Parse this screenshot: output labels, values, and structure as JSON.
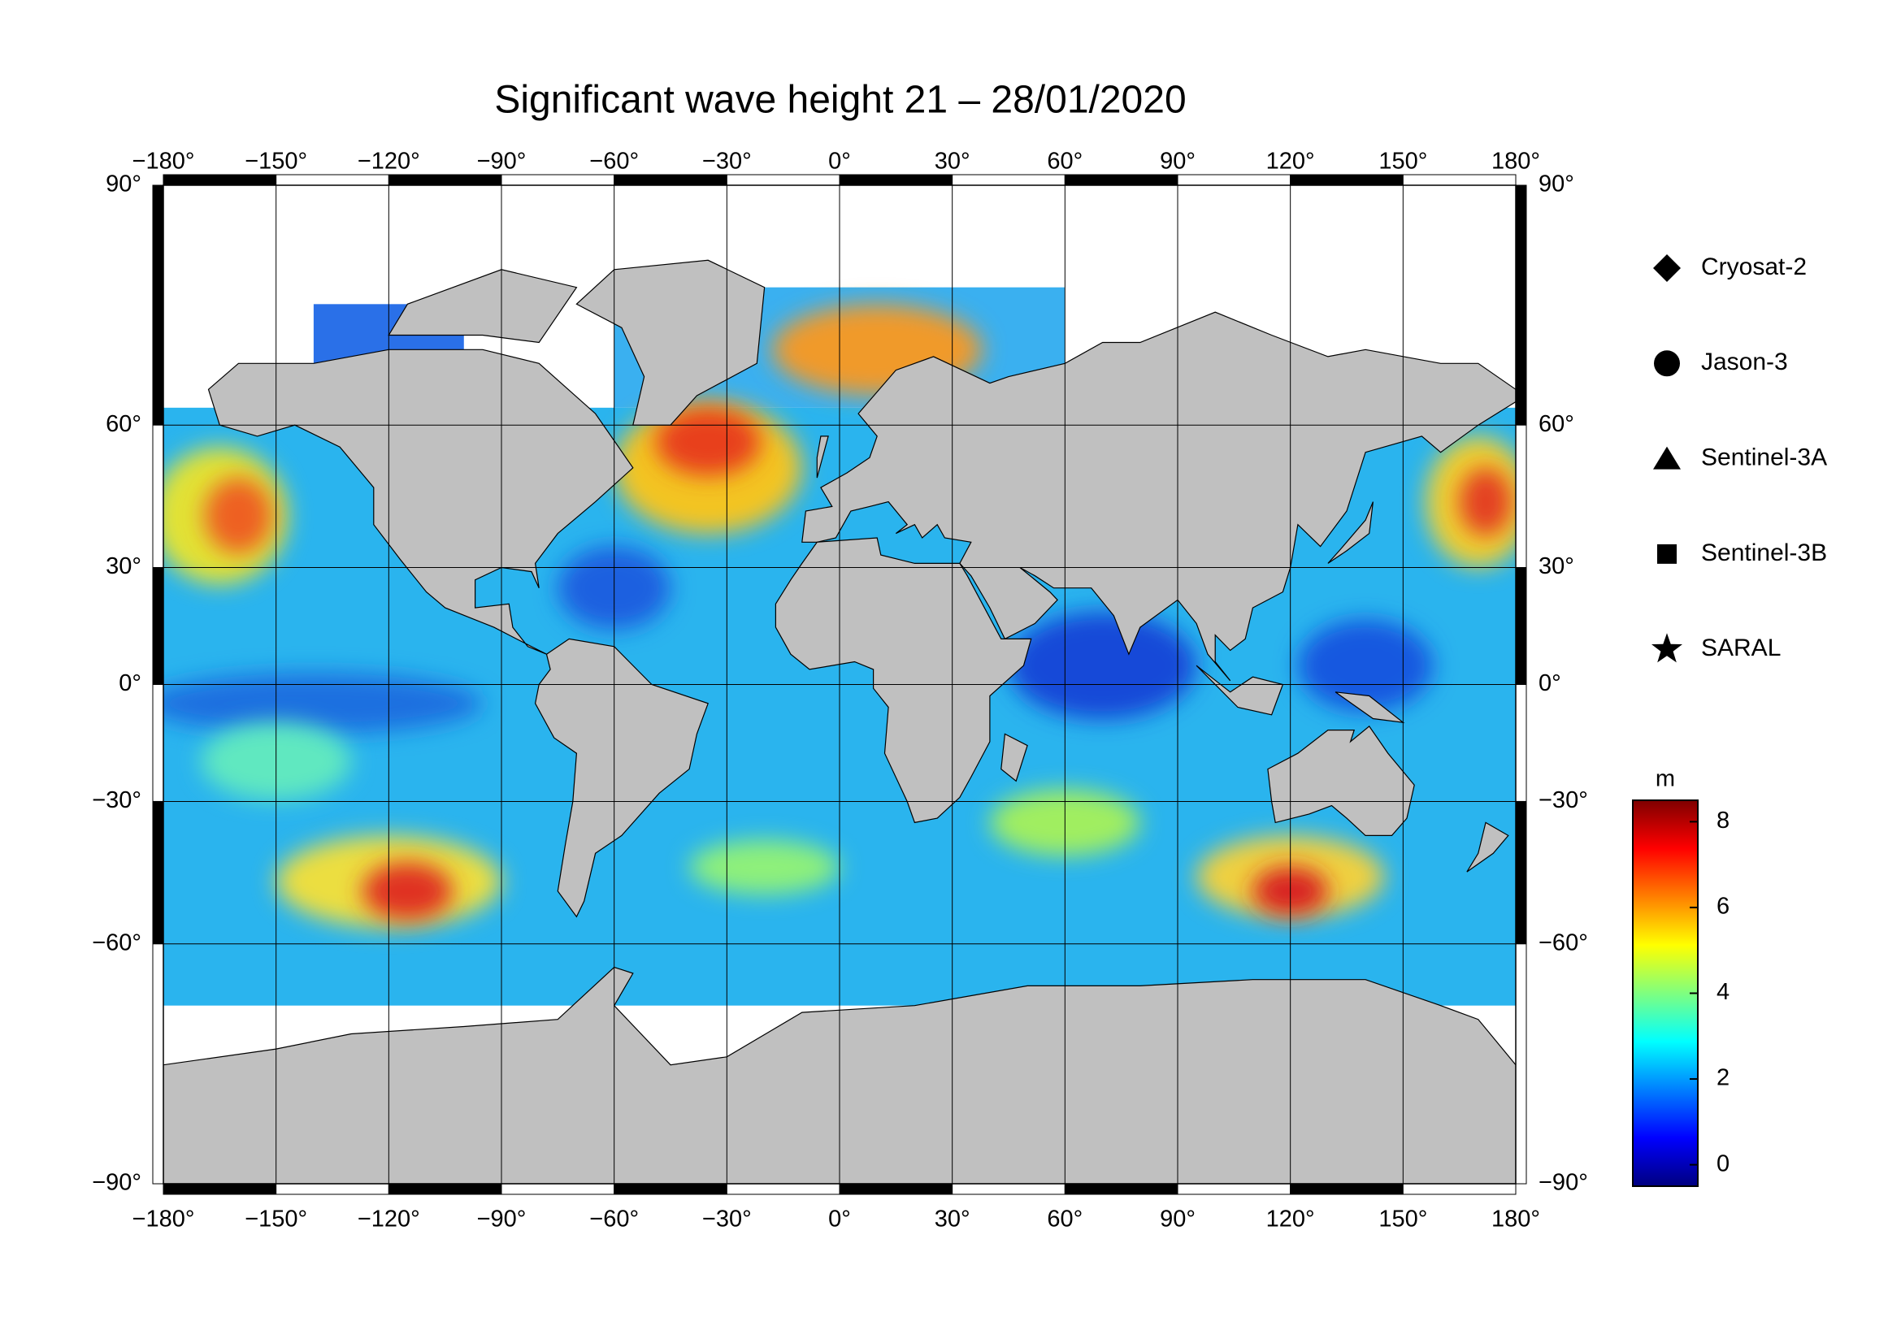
{
  "title": "Significant wave height 21 – 28/01/2020",
  "map": {
    "projection": "miller",
    "lon_ticks": [
      {
        "value": -180,
        "label": "−180°"
      },
      {
        "value": -150,
        "label": "−150°"
      },
      {
        "value": -120,
        "label": "−120°"
      },
      {
        "value": -90,
        "label": "−90°"
      },
      {
        "value": -60,
        "label": "−60°"
      },
      {
        "value": -30,
        "label": "−30°"
      },
      {
        "value": 0,
        "label": "0°"
      },
      {
        "value": 30,
        "label": "30°"
      },
      {
        "value": 60,
        "label": "60°"
      },
      {
        "value": 90,
        "label": "90°"
      },
      {
        "value": 120,
        "label": "120°"
      },
      {
        "value": 150,
        "label": "150°"
      },
      {
        "value": 180,
        "label": "180°"
      }
    ],
    "lat_ticks": [
      {
        "value": 90,
        "label": "90°"
      },
      {
        "value": 60,
        "label": "60°"
      },
      {
        "value": 30,
        "label": "30°"
      },
      {
        "value": 0,
        "label": "0°"
      },
      {
        "value": -30,
        "label": "−30°"
      },
      {
        "value": -60,
        "label": "−60°"
      },
      {
        "value": -90,
        "label": "−90°"
      }
    ],
    "grid": true
  },
  "legend": [
    {
      "label": "Cryosat-2",
      "marker": "diamond"
    },
    {
      "label": "Jason-3",
      "marker": "circle"
    },
    {
      "label": "Sentinel-3A",
      "marker": "triangle"
    },
    {
      "label": "Sentinel-3B",
      "marker": "square"
    },
    {
      "label": "SARAL",
      "marker": "star"
    }
  ],
  "colorbar": {
    "unit": "m",
    "clim": [
      -0.5,
      8.5
    ],
    "ticks": [
      0,
      2,
      4,
      6,
      8
    ],
    "colormap": "jet"
  }
}
